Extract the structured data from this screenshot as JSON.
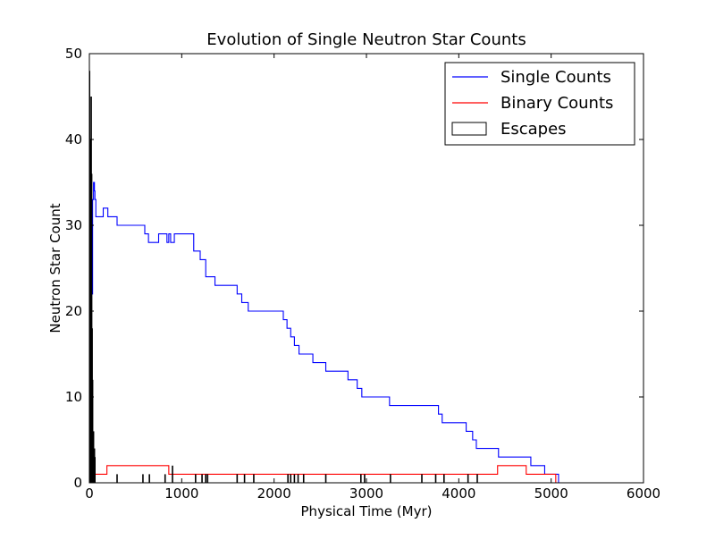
{
  "chart_data": {
    "type": "line",
    "title": "Evolution of Single Neutron Star Counts",
    "xlabel": "Physical Time (Myr)",
    "ylabel": "Neutron Star Count",
    "xlim": [
      0,
      6000
    ],
    "ylim": [
      0,
      50
    ],
    "xticks": [
      0,
      1000,
      2000,
      3000,
      4000,
      5000,
      6000
    ],
    "yticks": [
      0,
      10,
      20,
      30,
      40,
      50
    ],
    "grid": false,
    "legend_position": "top-right",
    "legend": [
      {
        "label": "Single Counts",
        "color": "#0000ff",
        "kind": "line"
      },
      {
        "label": "Binary Counts",
        "color": "#ff0000",
        "kind": "line"
      },
      {
        "label": "Escapes",
        "color": "#000000",
        "kind": "box"
      }
    ],
    "series": [
      {
        "name": "Single Counts",
        "color": "#0000ff",
        "step": true,
        "x": [
          0,
          5,
          10,
          15,
          20,
          25,
          30,
          35,
          45,
          55,
          60,
          70,
          90,
          150,
          170,
          200,
          300,
          600,
          640,
          670,
          750,
          840,
          860,
          880,
          920,
          1130,
          1200,
          1240,
          1260,
          1360,
          1600,
          1650,
          1720,
          2100,
          2140,
          2180,
          2220,
          2270,
          2420,
          2490,
          2560,
          2800,
          2900,
          2950,
          3250,
          3780,
          3820,
          3900,
          4080,
          4150,
          4190,
          4430,
          4780,
          4930,
          4990,
          5080
        ],
        "y": [
          3,
          8,
          5,
          18,
          25,
          30,
          22,
          33,
          35,
          34,
          33,
          31,
          31,
          32,
          32,
          31,
          30,
          29,
          28,
          28,
          29,
          28,
          29,
          28,
          29,
          27,
          26,
          26,
          24,
          23,
          22,
          21,
          20,
          19,
          18,
          17,
          16,
          15,
          14,
          14,
          13,
          12,
          11,
          10,
          9,
          8,
          7,
          7,
          6,
          5,
          4,
          3,
          2,
          1,
          1,
          0
        ]
      },
      {
        "name": "Binary Counts",
        "color": "#ff0000",
        "step": true,
        "x": [
          0,
          50,
          100,
          190,
          750,
          860,
          1380,
          4420,
          4730,
          4920,
          5050
        ],
        "y": [
          0,
          1,
          1,
          2,
          2,
          1,
          1,
          2,
          1,
          1,
          0
        ]
      }
    ],
    "escapes": {
      "name": "Escapes",
      "color": "#000000",
      "x": [
        2,
        8,
        15,
        20,
        25,
        30,
        35,
        45,
        55,
        60,
        300,
        580,
        650,
        820,
        900,
        1150,
        1220,
        1260,
        1280,
        1600,
        1680,
        1780,
        2150,
        2180,
        2220,
        2260,
        2320,
        2560,
        2940,
        2980,
        3260,
        3600,
        3750,
        3840,
        4100,
        4200
      ],
      "y": [
        48,
        30,
        40,
        45,
        36,
        18,
        12,
        6,
        4,
        3,
        1,
        1,
        1,
        1,
        2,
        1,
        1,
        1,
        1,
        1,
        1,
        1,
        1,
        1,
        1,
        1,
        1,
        1,
        1,
        1,
        1,
        1,
        1,
        1,
        1,
        1
      ]
    }
  }
}
